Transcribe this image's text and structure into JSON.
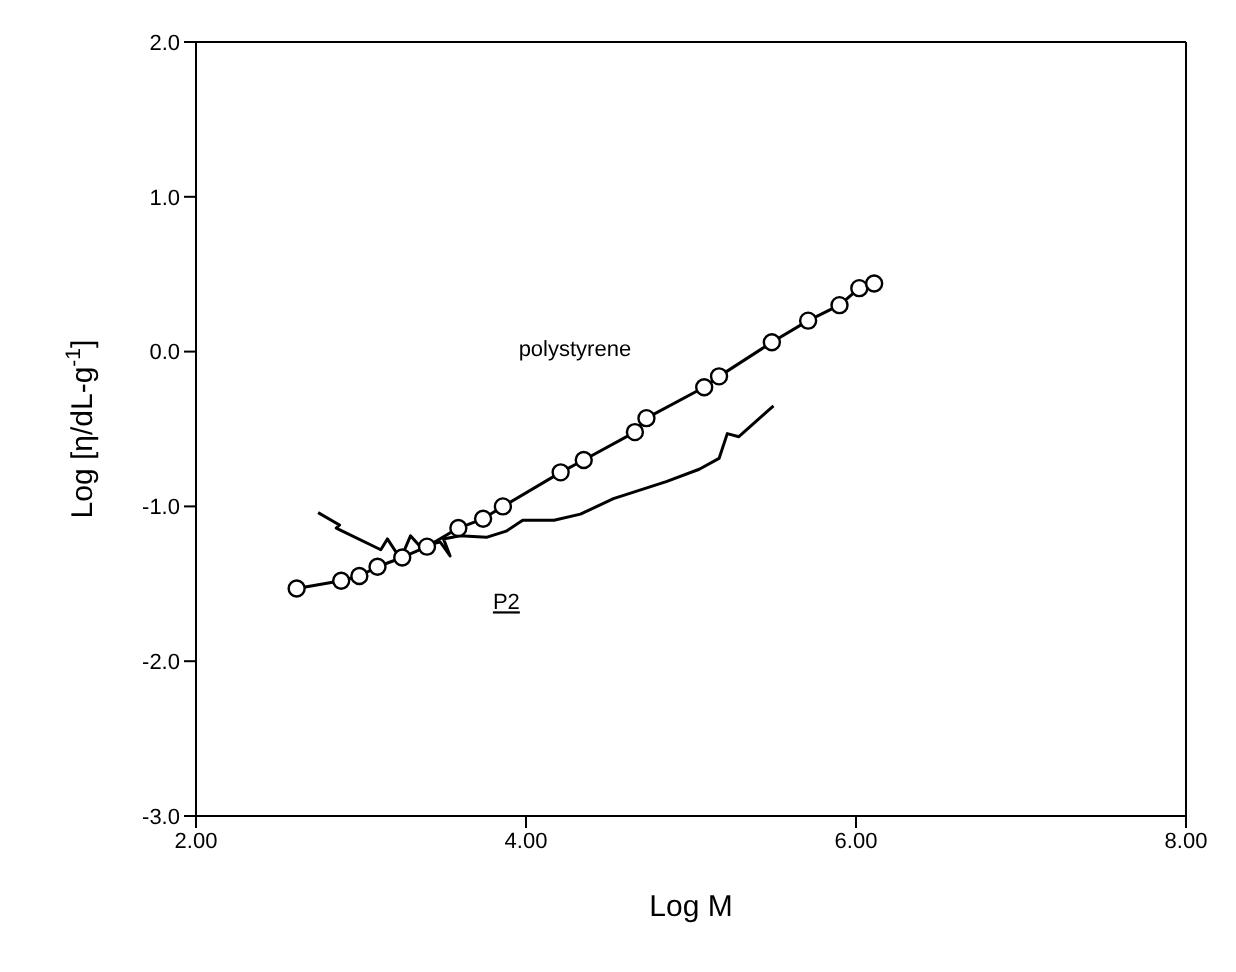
{
  "chart_data": {
    "type": "line",
    "xlabel": "Log M",
    "ylabel": "Log [η/dL-g$^{-1}$]",
    "xlim": [
      2,
      8
    ],
    "xticks": [
      {
        "value": 2,
        "label": "2.00"
      },
      {
        "value": 4,
        "label": "4.00"
      },
      {
        "value": 6,
        "label": "6.00"
      },
      {
        "value": 8,
        "label": "8.00"
      }
    ],
    "ylim": [
      -3,
      2
    ],
    "yticks": [
      {
        "value": -3,
        "label": "-3.0"
      },
      {
        "value": -2,
        "label": "-2.0"
      },
      {
        "value": -1,
        "label": "-1.0"
      },
      {
        "value": 0,
        "label": "0.0"
      },
      {
        "value": 1,
        "label": "1.0"
      },
      {
        "value": 2,
        "label": "2.0"
      }
    ],
    "series": [
      {
        "name": "polystyrene",
        "color": "#000000",
        "marker": "circle",
        "x": [
          2.61,
          2.88,
          2.99,
          3.1,
          3.25,
          3.4,
          3.59,
          3.74,
          3.86,
          4.21,
          4.35,
          4.66,
          4.73,
          5.08,
          5.17,
          5.49,
          5.71,
          5.9,
          6.02,
          6.11
        ],
        "values": [
          -1.53,
          -1.48,
          -1.45,
          -1.39,
          -1.33,
          -1.26,
          -1.14,
          -1.08,
          -1.0,
          -0.78,
          -0.7,
          -0.52,
          -0.43,
          -0.23,
          -0.16,
          0.06,
          0.2,
          0.3,
          0.41,
          0.44
        ]
      },
      {
        "name": "P2",
        "color": "#000000",
        "marker": "none",
        "x": [
          2.74,
          2.87,
          2.85,
          3.12,
          3.16,
          3.24,
          3.3,
          3.36,
          3.48,
          3.54,
          3.5,
          3.6,
          3.76,
          3.88,
          3.98,
          4.17,
          4.33,
          4.53,
          4.85,
          5.05,
          5.17,
          5.22,
          5.29,
          5.5
        ],
        "values": [
          -1.04,
          -1.12,
          -1.14,
          -1.28,
          -1.21,
          -1.34,
          -1.19,
          -1.26,
          -1.23,
          -1.32,
          -1.21,
          -1.19,
          -1.2,
          -1.16,
          -1.09,
          -1.09,
          -1.05,
          -0.95,
          -0.84,
          -0.76,
          -0.69,
          -0.53,
          -0.55,
          -0.35
        ]
      }
    ]
  }
}
